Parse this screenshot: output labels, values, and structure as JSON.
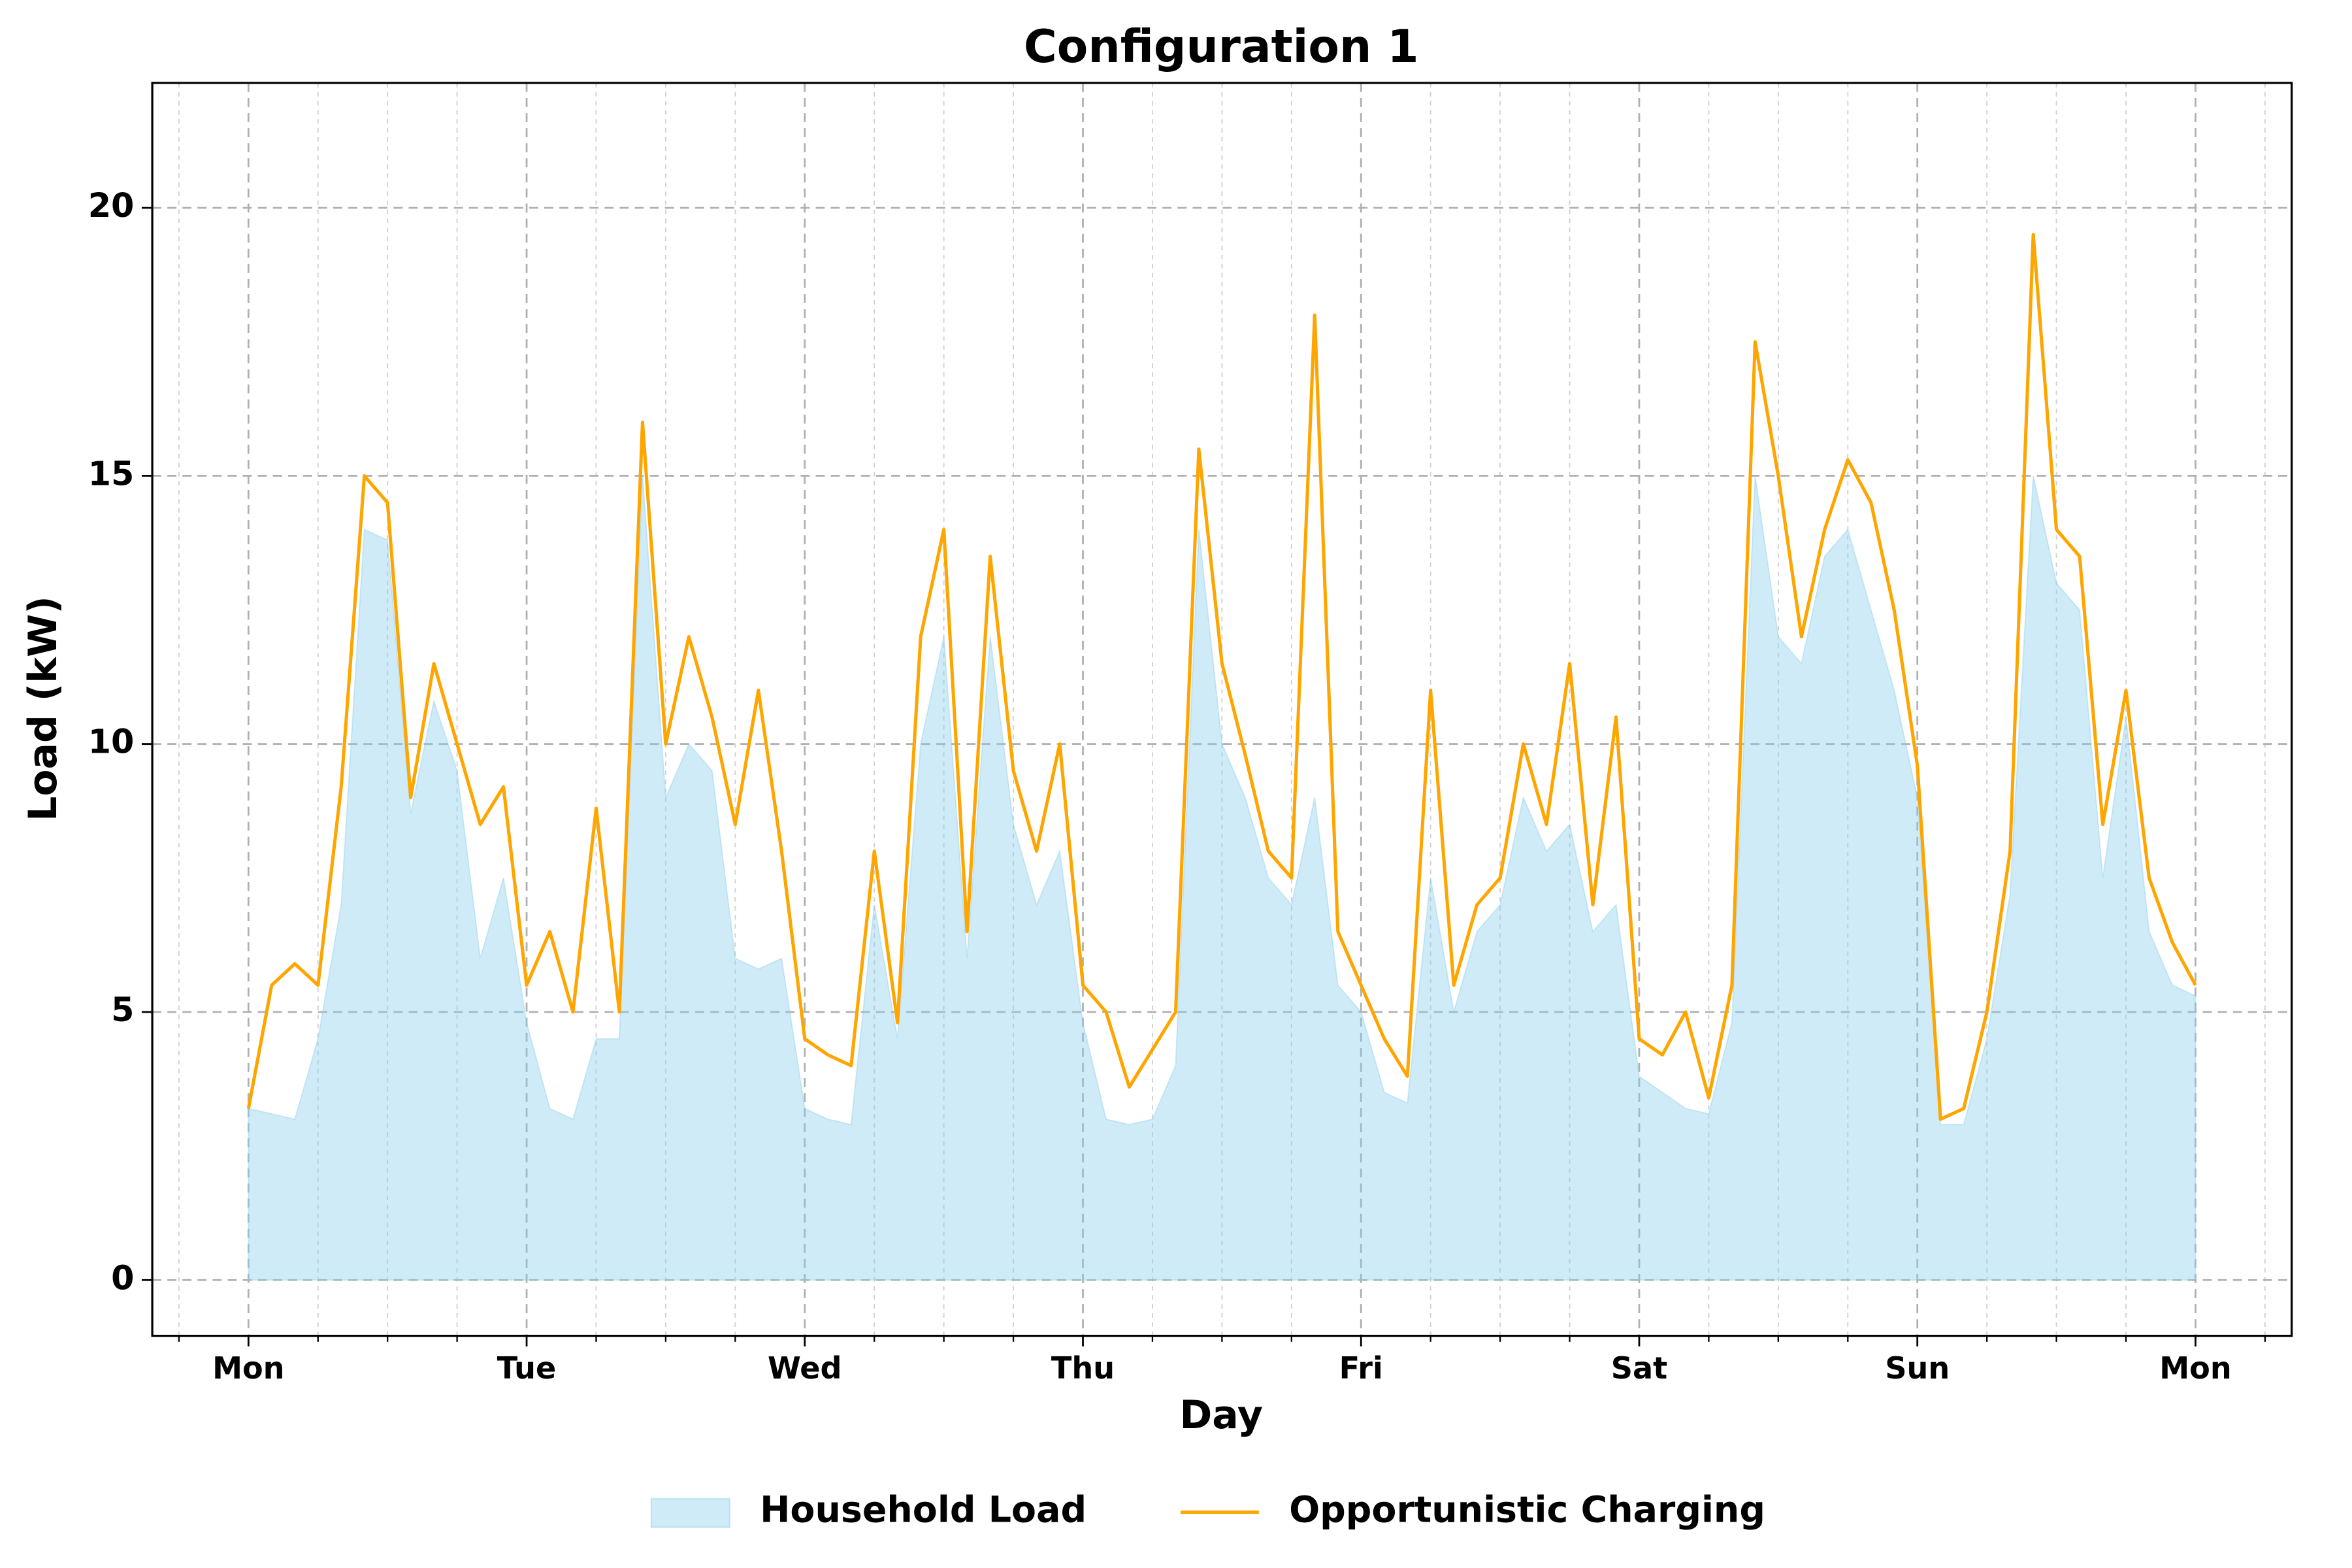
{
  "chart_data": {
    "type": "area-line",
    "title": "Configuration 1",
    "xlabel": "Day",
    "ylabel": "Load (kW)",
    "x": [
      0,
      2,
      4,
      6,
      8,
      10,
      12,
      14,
      16,
      18,
      20,
      22,
      24,
      26,
      28,
      30,
      32,
      34,
      36,
      38,
      40,
      42,
      44,
      46,
      48,
      50,
      52,
      54,
      56,
      58,
      60,
      62,
      64,
      66,
      68,
      70,
      72,
      74,
      76,
      78,
      80,
      82,
      84,
      86,
      88,
      90,
      92,
      94,
      96,
      98,
      100,
      102,
      104,
      106,
      108,
      110,
      112,
      114,
      116,
      118,
      120,
      122,
      124,
      126,
      128,
      130,
      132,
      134,
      136,
      138,
      140,
      142,
      144,
      146,
      148,
      150,
      152,
      154,
      156,
      158,
      160,
      162,
      164,
      166,
      168
    ],
    "series": [
      {
        "name": "Household Load",
        "kind": "area",
        "color": "#87ceeb",
        "values": [
          3.2,
          3.1,
          3.0,
          4.5,
          7.0,
          14.0,
          13.8,
          8.7,
          10.8,
          9.5,
          6.0,
          7.5,
          4.8,
          3.2,
          3.0,
          4.5,
          4.5,
          15.0,
          9.0,
          10.0,
          9.5,
          6.0,
          5.8,
          6.0,
          3.2,
          3.0,
          2.9,
          7.0,
          4.5,
          10.0,
          12.0,
          6.0,
          12.0,
          8.5,
          7.0,
          8.0,
          4.8,
          3.0,
          2.9,
          3.0,
          4.0,
          14.0,
          10.0,
          9.0,
          7.5,
          7.0,
          9.0,
          5.5,
          5.0,
          3.5,
          3.3,
          7.5,
          5.0,
          6.5,
          7.0,
          9.0,
          8.0,
          8.5,
          6.5,
          7.0,
          3.8,
          3.5,
          3.2,
          3.1,
          4.8,
          15.0,
          12.0,
          11.5,
          13.5,
          14.0,
          12.5,
          11.0,
          9.0,
          2.9,
          2.9,
          4.5,
          7.2,
          15.0,
          13.0,
          12.5,
          7.5,
          10.5,
          6.5,
          5.5,
          5.3
        ]
      },
      {
        "name": "Opportunistic Charging",
        "kind": "line",
        "color": "#ffa500",
        "values": [
          3.2,
          5.5,
          5.9,
          5.5,
          9.2,
          15.0,
          14.5,
          9.0,
          11.5,
          10.0,
          8.5,
          9.2,
          5.5,
          6.5,
          5.0,
          8.8,
          5.0,
          16.0,
          10.0,
          12.0,
          10.5,
          8.5,
          11.0,
          8.0,
          4.5,
          4.2,
          4.0,
          8.0,
          4.8,
          12.0,
          14.0,
          6.5,
          13.5,
          9.5,
          8.0,
          10.0,
          5.5,
          5.0,
          3.6,
          4.3,
          5.0,
          15.5,
          11.5,
          9.8,
          8.0,
          7.5,
          18.0,
          6.5,
          5.5,
          4.5,
          3.8,
          11.0,
          5.5,
          7.0,
          7.5,
          10.0,
          8.5,
          11.5,
          7.0,
          10.5,
          4.5,
          4.2,
          5.0,
          3.4,
          5.5,
          17.5,
          15.0,
          12.0,
          14.0,
          15.3,
          14.5,
          12.5,
          9.6,
          3.0,
          3.2,
          5.0,
          8.0,
          19.5,
          14.0,
          13.5,
          8.5,
          11.0,
          7.5,
          6.3,
          5.5
        ]
      }
    ],
    "xlim": [
      -8.3,
      176.3
    ],
    "xticks": [
      {
        "value": 0,
        "label": "Mon"
      },
      {
        "value": 24,
        "label": "Tue"
      },
      {
        "value": 48,
        "label": "Wed"
      },
      {
        "value": 72,
        "label": "Thu"
      },
      {
        "value": 96,
        "label": "Fri"
      },
      {
        "value": 120,
        "label": "Sat"
      },
      {
        "value": 144,
        "label": "Sun"
      },
      {
        "value": 168,
        "label": "Mon"
      }
    ],
    "xminorticks": [
      -6,
      6,
      12,
      18,
      30,
      36,
      42,
      54,
      60,
      66,
      78,
      84,
      90,
      102,
      108,
      114,
      126,
      132,
      138,
      150,
      156,
      162,
      174
    ],
    "ylim": [
      -1.04,
      22.33
    ],
    "yticks": [
      0,
      5,
      10,
      15,
      20
    ],
    "grid": true,
    "legend": "bottom"
  }
}
